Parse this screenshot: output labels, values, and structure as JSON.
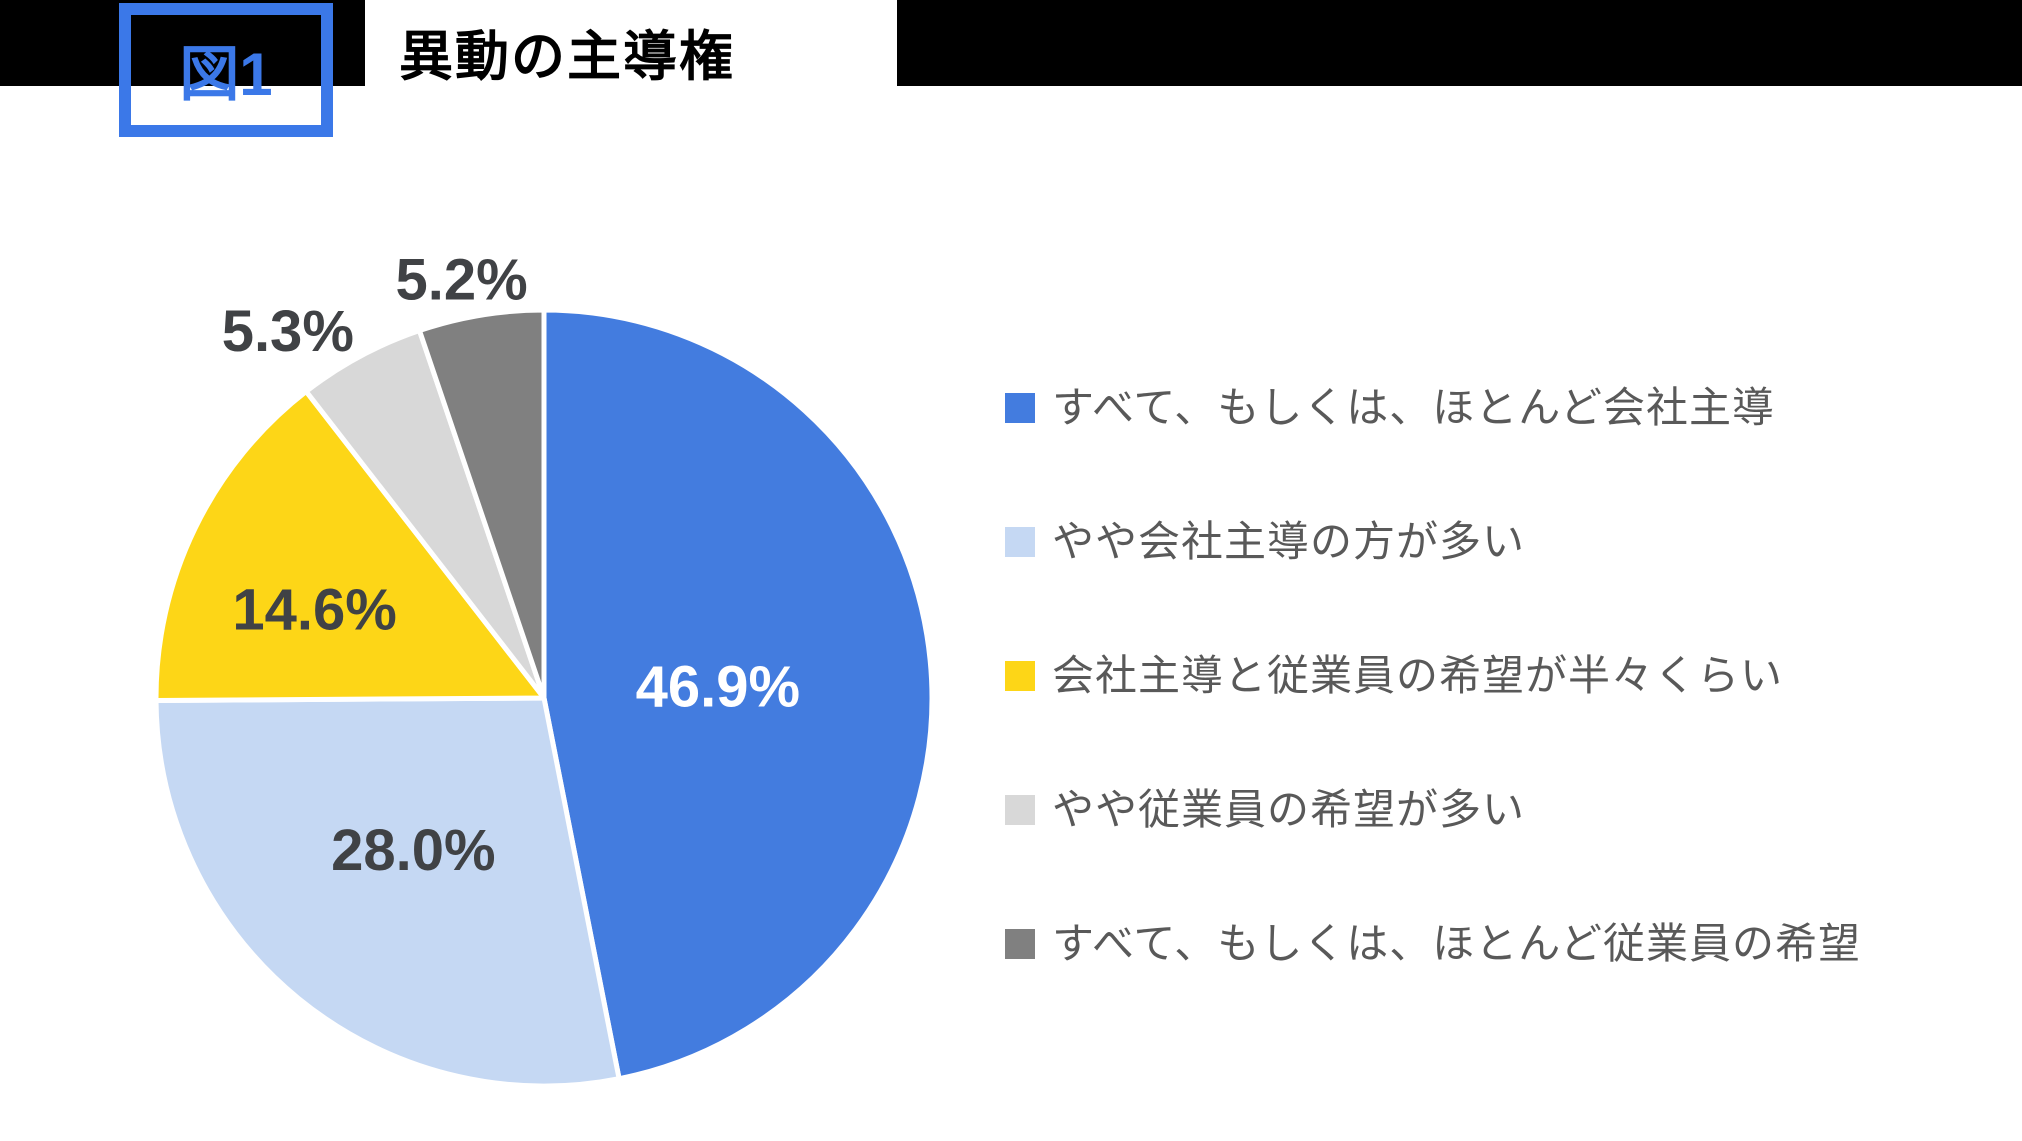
{
  "header": {
    "figure_tag": "図1",
    "title": "異動の主導権"
  },
  "colors": {
    "header_band": "#000000",
    "tag_blue": "#3B78E8",
    "page_background": "#FFFFFF",
    "inside_label_dark": "#404245",
    "inside_label_light": "#FFFFFF",
    "legend_text": "#595959"
  },
  "chart_data": {
    "type": "pie",
    "title": "異動の主導権",
    "start_angle_deg": 0,
    "direction": "clockwise",
    "legend_position": "right",
    "grid": false,
    "slices": [
      {
        "label": "すべて、もしくは、ほとんど会社主導",
        "value": 46.9,
        "display": "46.9%",
        "color": "#437CDF",
        "label_color": "#FFFFFF",
        "label_inside": true
      },
      {
        "label": "やや会社主導の方が多い",
        "value": 28.0,
        "display": "28.0%",
        "color": "#C5D8F3",
        "label_color": "#404245",
        "label_inside": true
      },
      {
        "label": "会社主導と従業員の希望が半々くらい",
        "value": 14.6,
        "display": "14.6%",
        "color": "#FDD617",
        "label_color": "#404245",
        "label_inside": true
      },
      {
        "label": "やや従業員の希望が多い",
        "value": 5.3,
        "display": "5.3%",
        "color": "#D8D8D8",
        "label_color": "#404245",
        "label_inside": false
      },
      {
        "label": "すべて、もしくは、ほとんど従業員の希望",
        "value": 5.2,
        "display": "5.2%",
        "color": "#808080",
        "label_color": "#404245",
        "label_inside": false
      }
    ]
  }
}
